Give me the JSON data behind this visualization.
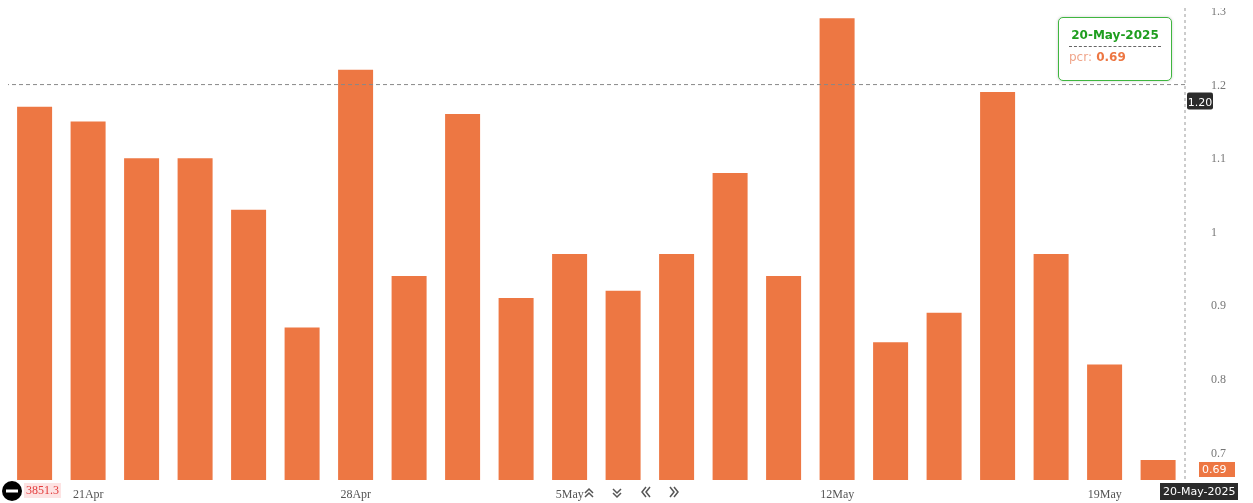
{
  "chart_data": {
    "type": "bar",
    "categories": [
      null,
      "21Apr",
      null,
      null,
      null,
      null,
      "28Apr",
      null,
      null,
      null,
      "5May",
      null,
      null,
      null,
      null,
      "12May",
      null,
      null,
      null,
      null,
      "19May",
      null
    ],
    "series": [
      {
        "color": "#ed7743",
        "values": [
          1.17,
          1.15,
          1.1,
          1.1,
          1.03,
          0.87,
          1.22,
          0.94,
          1.16,
          0.91,
          0.97,
          0.92,
          0.97,
          1.08,
          0.94,
          1.29,
          0.85,
          0.89,
          1.19,
          0.97,
          0.82,
          0.69
        ]
      }
    ],
    "ylim": [
      0.663,
      1.304
    ],
    "yticks": [
      0.7,
      0.8,
      0.9,
      1,
      1.1,
      1.2,
      1.3
    ],
    "ref_lines": [
      {
        "axis": "y",
        "value": 1.2,
        "label": "1.20",
        "color": "#888888",
        "line_style": "dashed"
      }
    ],
    "annotations": [
      "20-May-2025",
      "pcr: 0.69",
      "20-May-2025",
      "3851.3",
      "0.69"
    ]
  }
}
